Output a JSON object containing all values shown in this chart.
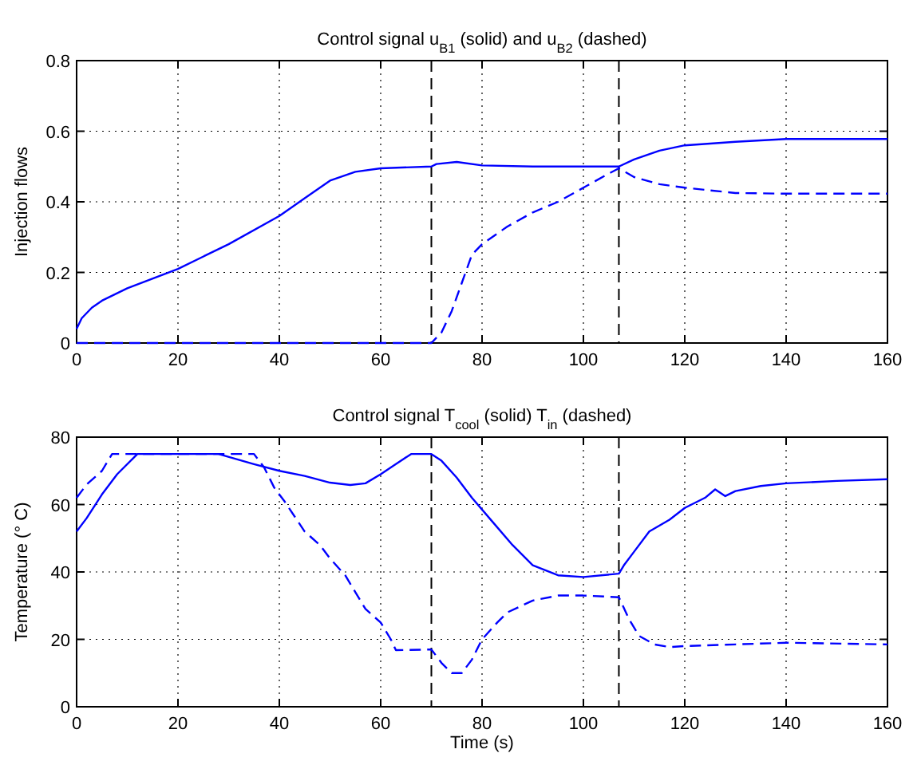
{
  "chart_data": [
    {
      "type": "line",
      "title": "Control signal u$_{B1}$ (solid) and u$_{B2}$ (dashed)",
      "ylabel": "Injection flows",
      "xlim": [
        0,
        160
      ],
      "xticks": [
        0,
        20,
        40,
        60,
        80,
        100,
        120,
        140,
        160
      ],
      "ylim": [
        0,
        0.8
      ],
      "yticks": [
        0,
        0.2,
        0.4,
        0.6,
        0.8
      ],
      "grid": true,
      "series": [
        {
          "color": "#0000ff",
          "line_style": "solid",
          "x": [
            0,
            1,
            3,
            5,
            10,
            20,
            30,
            40,
            45,
            50,
            55,
            60,
            70,
            71,
            75,
            80,
            90,
            107,
            110,
            115,
            120,
            130,
            140,
            160
          ],
          "values": [
            0.04,
            0.07,
            0.1,
            0.12,
            0.155,
            0.21,
            0.28,
            0.36,
            0.41,
            0.46,
            0.485,
            0.495,
            0.5,
            0.507,
            0.513,
            0.503,
            0.5,
            0.5,
            0.52,
            0.545,
            0.56,
            0.57,
            0.578,
            0.578
          ]
        },
        {
          "color": "#0000ff",
          "line_style": "dashed",
          "x": [
            0,
            70,
            72,
            74,
            76,
            78,
            80,
            85,
            90,
            95,
            100,
            105,
            107,
            110,
            115,
            120,
            130,
            140,
            160
          ],
          "values": [
            0,
            0,
            0.03,
            0.09,
            0.17,
            0.25,
            0.28,
            0.33,
            0.37,
            0.4,
            0.44,
            0.48,
            0.495,
            0.47,
            0.45,
            0.44,
            0.425,
            0.423,
            0.423
          ]
        }
      ],
      "ref_lines": [
        {
          "axis": "x",
          "value": 70,
          "color": "#000000",
          "line_style": "dashed"
        },
        {
          "axis": "x",
          "value": 107,
          "color": "#000000",
          "line_style": "dashed"
        }
      ]
    },
    {
      "type": "line",
      "title": "Control signal T$_{cool}$ (solid) T$_{in}$ (dashed)",
      "xlabel": "Time (s)",
      "ylabel": "Temperature (° C)",
      "xlim": [
        0,
        160
      ],
      "xticks": [
        0,
        20,
        40,
        60,
        80,
        100,
        120,
        140,
        160
      ],
      "ylim": [
        0,
        80
      ],
      "yticks": [
        0,
        20,
        40,
        60,
        80
      ],
      "grid": true,
      "series": [
        {
          "color": "#0000ff",
          "line_style": "solid",
          "x": [
            0,
            2,
            5,
            8,
            12,
            28,
            35,
            40,
            45,
            50,
            54,
            57,
            60,
            63,
            66,
            70,
            72,
            75,
            78,
            82,
            86,
            90,
            95,
            100,
            107,
            108,
            110,
            113,
            117,
            120,
            124,
            126,
            128,
            130,
            135,
            140,
            150,
            160
          ],
          "values": [
            52,
            56,
            63,
            69,
            75,
            75,
            72,
            70,
            68.5,
            66.5,
            65.8,
            66.3,
            69,
            72,
            75,
            75,
            73,
            68,
            62,
            55,
            48,
            42,
            39,
            38.5,
            39.5,
            42,
            46,
            52,
            55.5,
            59,
            62,
            64.5,
            62.5,
            64,
            65.5,
            66.3,
            67,
            67.5
          ]
        },
        {
          "color": "#0000ff",
          "line_style": "dashed",
          "x": [
            0,
            2,
            5,
            7,
            35,
            37,
            39,
            41,
            45,
            48,
            50,
            53,
            55,
            57,
            60,
            62,
            63,
            70,
            72,
            74,
            76,
            78,
            80,
            83,
            85,
            90,
            95,
            100,
            107,
            109,
            111,
            114,
            117,
            120,
            130,
            140,
            160
          ],
          "values": [
            62,
            66,
            70,
            75,
            75,
            71,
            65,
            61,
            52,
            48,
            44,
            39,
            34,
            29,
            25,
            20,
            16.8,
            17,
            13,
            10,
            10,
            14,
            20,
            25,
            28,
            31.5,
            33,
            33,
            32.5,
            26,
            21,
            18.5,
            17.7,
            18,
            18.5,
            19,
            18.5
          ]
        }
      ],
      "ref_lines": [
        {
          "axis": "x",
          "value": 70,
          "color": "#000000",
          "line_style": "dashed"
        },
        {
          "axis": "x",
          "value": 107,
          "color": "#000000",
          "line_style": "dashed"
        }
      ]
    }
  ]
}
